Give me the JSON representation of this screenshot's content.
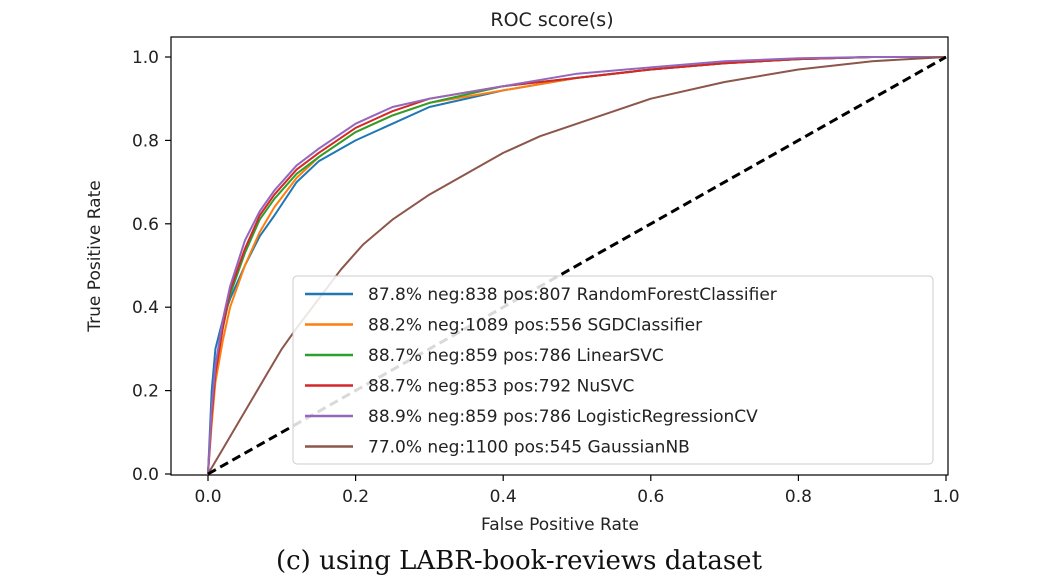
{
  "caption": "(c) using LABR-book-reviews dataset",
  "chart_data": {
    "type": "line",
    "title": "ROC score(s)",
    "xlabel": "False Positive Rate",
    "ylabel": "True Positive Rate",
    "xlim": [
      0,
      1
    ],
    "ylim": [
      0,
      1
    ],
    "xticks": [
      "0.0",
      "0.2",
      "0.4",
      "0.6",
      "0.8",
      "1.0"
    ],
    "yticks": [
      "0.0",
      "0.2",
      "0.4",
      "0.6",
      "0.8",
      "1.0"
    ],
    "grid": false,
    "legend_position": "lower-right",
    "series": [
      {
        "name": "87.8% neg:838 pos:807 RandomForestClassifier",
        "color": "#1f77b4",
        "x": [
          0,
          0.005,
          0.01,
          0.02,
          0.03,
          0.05,
          0.07,
          0.09,
          0.12,
          0.15,
          0.2,
          0.25,
          0.3,
          0.4,
          0.5,
          0.6,
          0.7,
          0.8,
          0.9,
          1.0
        ],
        "y": [
          0,
          0.2,
          0.3,
          0.37,
          0.42,
          0.5,
          0.57,
          0.62,
          0.7,
          0.75,
          0.8,
          0.84,
          0.88,
          0.92,
          0.95,
          0.97,
          0.985,
          0.995,
          1.0,
          1.0
        ]
      },
      {
        "name": "88.2% neg:1089 pos:556 SGDClassifier",
        "color": "#ff7f0e",
        "x": [
          0,
          0.005,
          0.01,
          0.02,
          0.03,
          0.05,
          0.07,
          0.09,
          0.12,
          0.15,
          0.2,
          0.25,
          0.3,
          0.4,
          0.5,
          0.6,
          0.7,
          0.8,
          0.9,
          1.0
        ],
        "y": [
          0,
          0.12,
          0.22,
          0.32,
          0.4,
          0.5,
          0.58,
          0.64,
          0.71,
          0.76,
          0.82,
          0.86,
          0.89,
          0.92,
          0.95,
          0.97,
          0.985,
          0.995,
          1.0,
          1.0
        ]
      },
      {
        "name": "88.7% neg:859 pos:786 LinearSVC",
        "color": "#2ca02c",
        "x": [
          0,
          0.005,
          0.01,
          0.02,
          0.03,
          0.05,
          0.07,
          0.09,
          0.12,
          0.15,
          0.2,
          0.25,
          0.3,
          0.4,
          0.5,
          0.6,
          0.7,
          0.8,
          0.9,
          1.0
        ],
        "y": [
          0,
          0.15,
          0.25,
          0.35,
          0.43,
          0.53,
          0.61,
          0.66,
          0.72,
          0.76,
          0.82,
          0.86,
          0.89,
          0.93,
          0.95,
          0.97,
          0.985,
          0.995,
          1.0,
          1.0
        ]
      },
      {
        "name": "88.7% neg:853 pos:792 NuSVC",
        "color": "#d62728",
        "x": [
          0,
          0.005,
          0.01,
          0.02,
          0.03,
          0.05,
          0.07,
          0.09,
          0.12,
          0.15,
          0.2,
          0.25,
          0.3,
          0.4,
          0.5,
          0.6,
          0.7,
          0.8,
          0.9,
          1.0
        ],
        "y": [
          0,
          0.14,
          0.24,
          0.35,
          0.44,
          0.54,
          0.62,
          0.67,
          0.73,
          0.77,
          0.83,
          0.87,
          0.9,
          0.93,
          0.95,
          0.97,
          0.985,
          0.995,
          1.0,
          1.0
        ]
      },
      {
        "name": "88.9% neg:859 pos:786 LogisticRegressionCV",
        "color": "#9467bd",
        "x": [
          0,
          0.005,
          0.01,
          0.02,
          0.03,
          0.05,
          0.07,
          0.09,
          0.12,
          0.15,
          0.2,
          0.25,
          0.3,
          0.4,
          0.5,
          0.6,
          0.7,
          0.8,
          0.9,
          1.0
        ],
        "y": [
          0,
          0.16,
          0.26,
          0.37,
          0.45,
          0.56,
          0.63,
          0.68,
          0.74,
          0.78,
          0.84,
          0.88,
          0.9,
          0.93,
          0.96,
          0.975,
          0.99,
          0.997,
          1.0,
          1.0
        ]
      },
      {
        "name": "77.0% neg:1100 pos:545 GaussianNB",
        "color": "#8c564b",
        "x": [
          0,
          0.02,
          0.04,
          0.06,
          0.08,
          0.1,
          0.12,
          0.15,
          0.18,
          0.21,
          0.25,
          0.3,
          0.35,
          0.4,
          0.45,
          0.5,
          0.55,
          0.6,
          0.7,
          0.8,
          0.9,
          1.0
        ],
        "y": [
          0,
          0.06,
          0.12,
          0.18,
          0.24,
          0.3,
          0.35,
          0.42,
          0.49,
          0.55,
          0.61,
          0.67,
          0.72,
          0.77,
          0.81,
          0.84,
          0.87,
          0.9,
          0.94,
          0.97,
          0.99,
          1.0
        ]
      },
      {
        "name": "",
        "color": "#000000",
        "dashed": true,
        "x": [
          0,
          1
        ],
        "y": [
          0,
          1
        ]
      }
    ]
  }
}
